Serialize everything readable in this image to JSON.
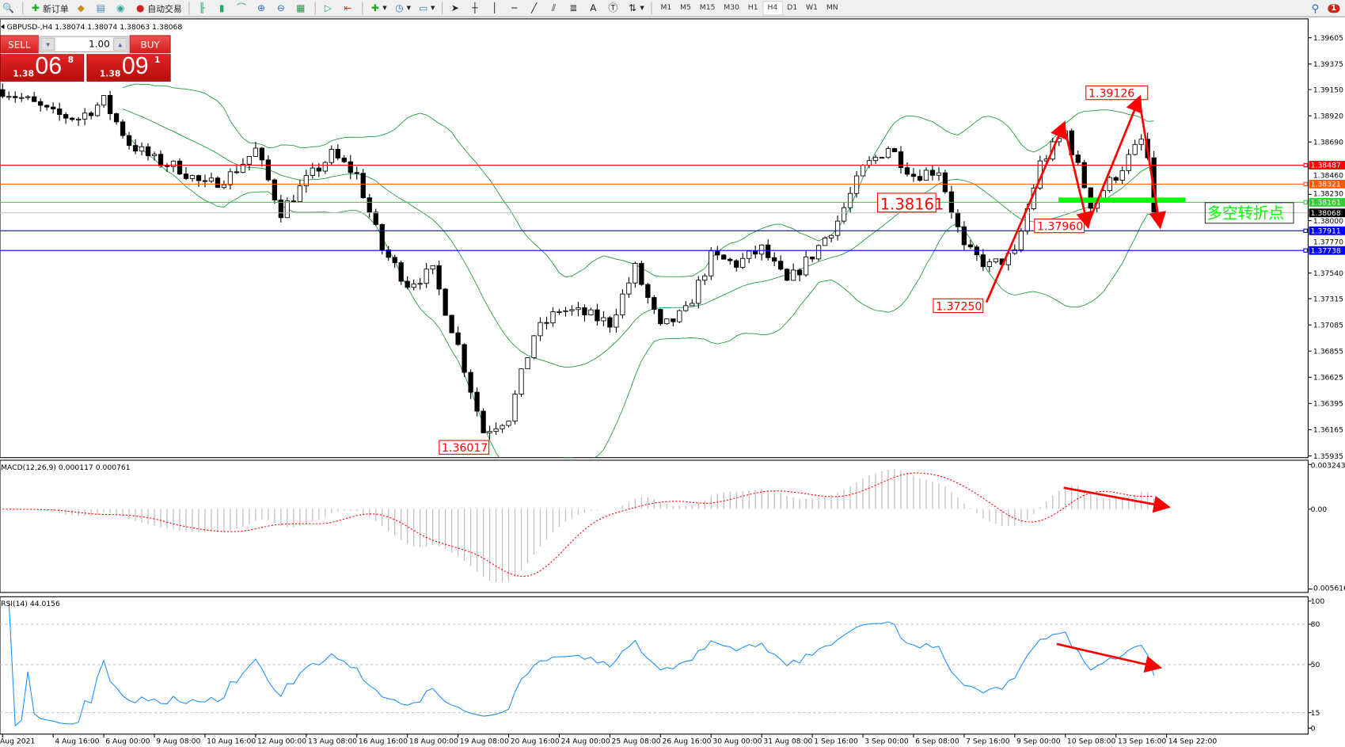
{
  "toolbar": {
    "new_order": "新订单",
    "auto_trading": "自动交易",
    "timeframes": [
      "M1",
      "M5",
      "M15",
      "M30",
      "H1",
      "H4",
      "D1",
      "W1",
      "MN"
    ],
    "active_timeframe": "H4",
    "notification_count": "1"
  },
  "chart": {
    "header": "GBPUSD-,H4  1.38074 1.38074 1.38063 1.38068",
    "symbol": "GBPUSD-",
    "timeframe": "H4"
  },
  "trade_panel": {
    "sell_label": "SELL",
    "buy_label": "BUY",
    "lot": "1.00",
    "bid": {
      "prefix": "1.38",
      "big": "06",
      "pip": "8"
    },
    "ask": {
      "prefix": "1.38",
      "big": "09",
      "pip": "1"
    }
  },
  "chart_data": {
    "type": "candlestick",
    "title": "GBPUSD-,H4",
    "ohlc_last": {
      "open": 1.38074,
      "high": 1.38074,
      "low": 1.38063,
      "close": 1.38068
    },
    "approx_close_path_every_4_bars": [
      1.3915,
      1.3905,
      1.3893,
      1.389,
      1.3905,
      1.3868,
      1.3853,
      1.3846,
      1.383,
      1.384,
      1.3862,
      1.3808,
      1.3835,
      1.3858,
      1.384,
      1.3775,
      1.3745,
      1.3755,
      1.369,
      1.3615,
      1.3628,
      1.37,
      1.3722,
      1.3718,
      1.371,
      1.3758,
      1.3705,
      1.372,
      1.3768,
      1.3762,
      1.3775,
      1.3745,
      1.377,
      1.38,
      1.3845,
      1.3865,
      1.384,
      1.3845,
      1.3775,
      1.376,
      1.377,
      1.385,
      1.3878,
      1.3815,
      1.384,
      1.387,
      1.38068
    ],
    "price_axis": {
      "ylim": [
        1.35935,
        1.39605
      ],
      "ticks": [
        "1.39605",
        "1.39375",
        "1.39150",
        "1.38920",
        "1.38690",
        "1.38460",
        "1.38230",
        "1.38000",
        "1.37770",
        "1.37540",
        "1.37315",
        "1.37085",
        "1.36855",
        "1.36625",
        "1.36395",
        "1.36165",
        "1.35935"
      ]
    },
    "time_axis": [
      "Aug 2021",
      "4 Aug 16:00",
      "6 Aug 00:00",
      "9 Aug 08:00",
      "10 Aug 16:00",
      "12 Aug 00:00",
      "13 Aug 08:00",
      "16 Aug 16:00",
      "18 Aug 00:00",
      "19 Aug 08:00",
      "20 Aug 16:00",
      "24 Aug 00:00",
      "25 Aug 08:00",
      "26 Aug 16:00",
      "30 Aug 00:00",
      "31 Aug 08:00",
      "1 Sep 16:00",
      "3 Sep 00:00",
      "6 Sep 08:00",
      "7 Sep 16:00",
      "9 Sep 00:00",
      "10 Sep 08:00",
      "13 Sep 16:00",
      "14 Sep 22:00"
    ],
    "indicators": {
      "bollinger": {
        "period": 20,
        "deviation": 2,
        "color": "#1a9a3a"
      }
    },
    "levels": [
      {
        "price": 1.38487,
        "label": "1.38487",
        "color": "#ff0000"
      },
      {
        "price": 1.38321,
        "label": "1.38321",
        "color": "#ff5a00"
      },
      {
        "price": 1.38161,
        "label": "1.38161",
        "color": "#32cd32"
      },
      {
        "price": 1.37911,
        "label": "1.37911",
        "color": "#0000ff"
      },
      {
        "price": 1.37738,
        "label": "1.37738",
        "color": "#0000ff"
      }
    ],
    "current_price": {
      "price": 1.38068,
      "label": "1.38068"
    },
    "annotations": [
      {
        "label": "1.39126",
        "price": 1.39126
      },
      {
        "label": "1.38161",
        "price": 1.38161
      },
      {
        "label": "1.37960",
        "price": 1.3796
      },
      {
        "label": "1.37250",
        "price": 1.3725
      },
      {
        "label": "1.36017",
        "price": 1.36017
      }
    ],
    "text_note": "多空转折点",
    "note_color": "#00ff00",
    "arrow_color": "#ff0000"
  },
  "macd": {
    "label": "MACD(12,26,9) 0.000117 0.000761",
    "ticks": [
      "0.003243",
      "0.00",
      "-0.005616"
    ],
    "ylim": [
      -0.005616,
      0.003243
    ]
  },
  "rsi": {
    "label": "RSI(14) 44.0156",
    "ticks": [
      "100",
      "80",
      "50",
      "15",
      "0"
    ],
    "levels": [
      80,
      50,
      15
    ],
    "color": "#1e90ff"
  }
}
